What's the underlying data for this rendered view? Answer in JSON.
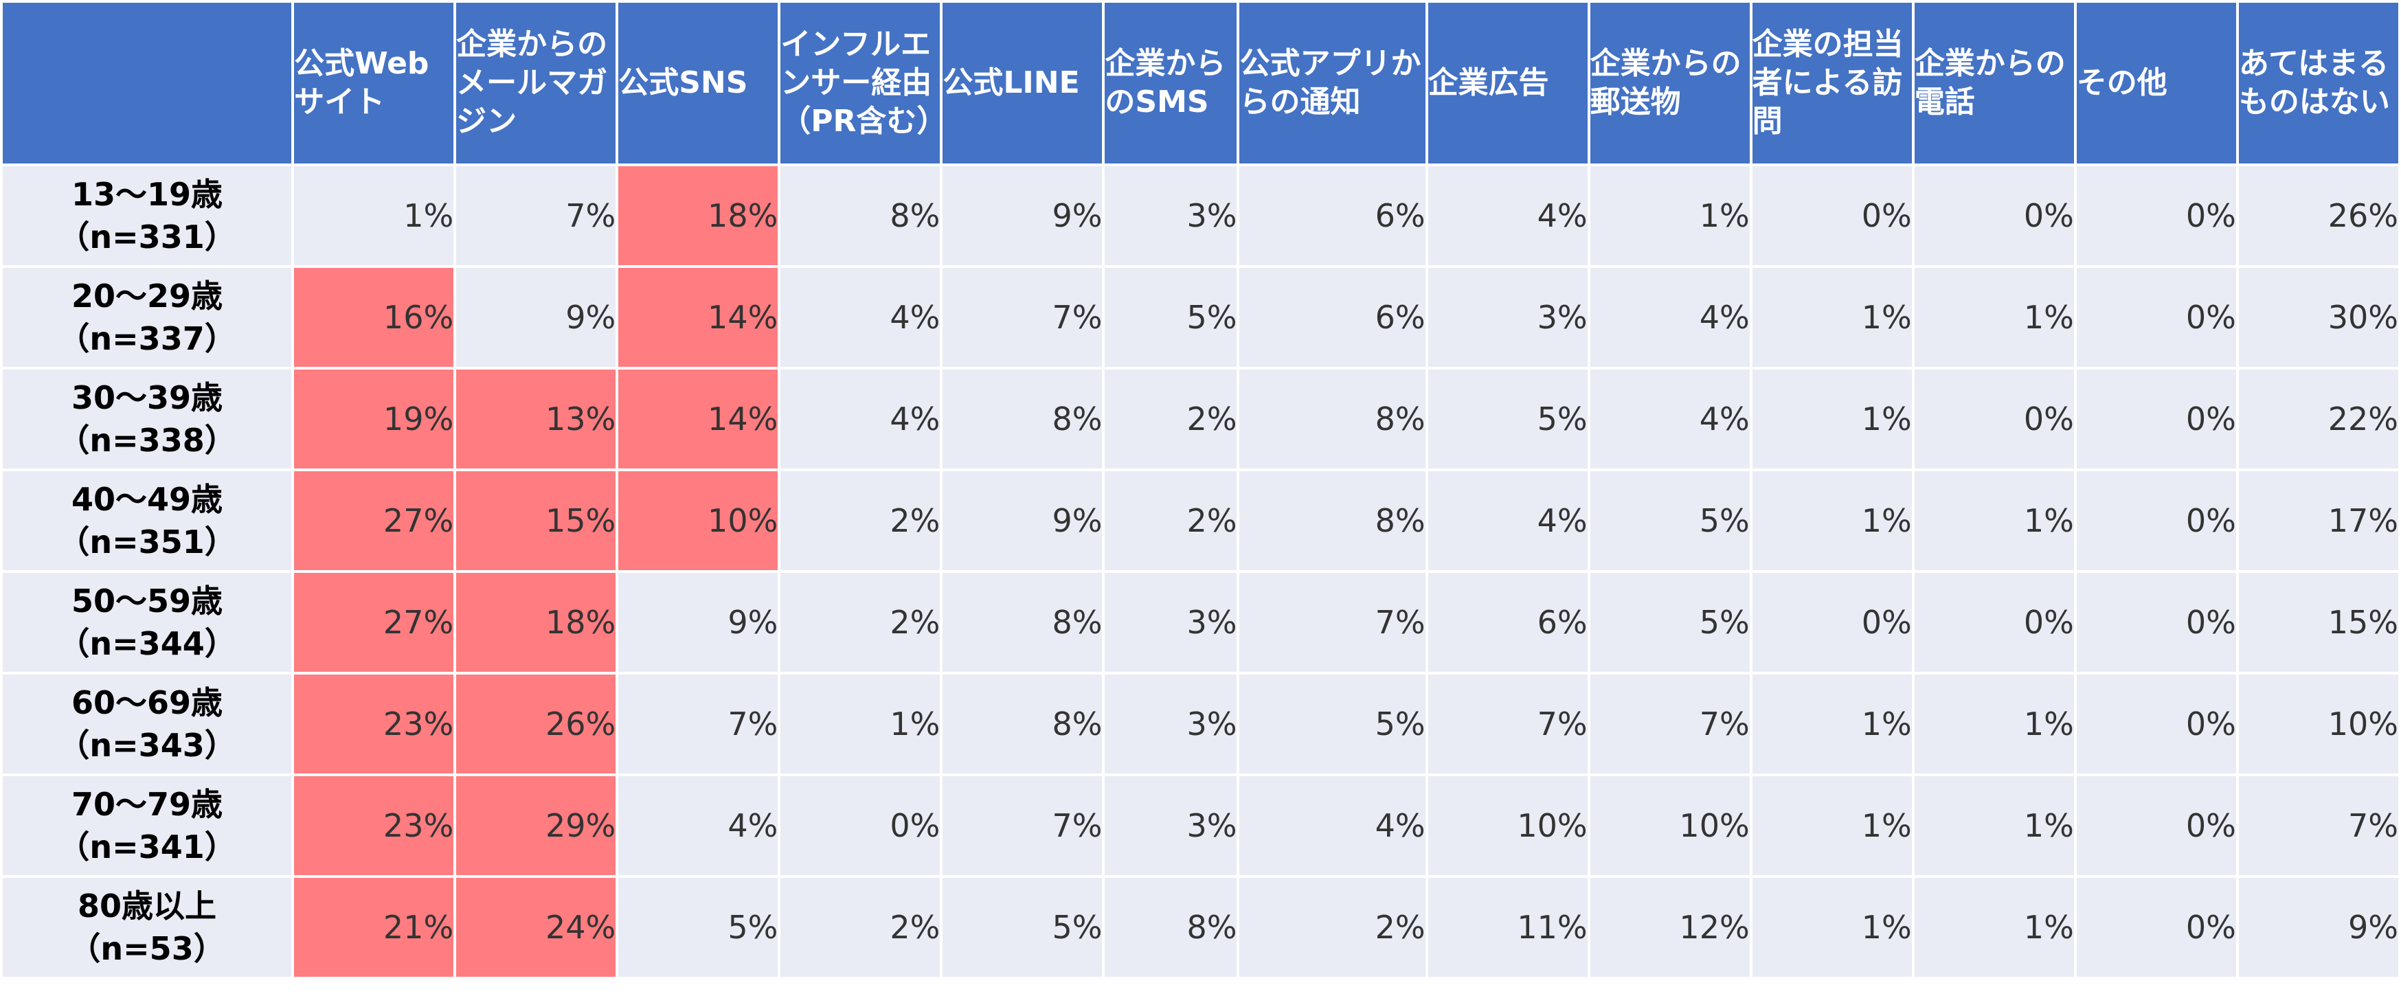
{
  "chart_data": {
    "type": "table",
    "colors": {
      "header_bg": "#4472C4",
      "cell_bg": "#E9EBF5",
      "highlight": "#FF7C80"
    },
    "columns": [
      "公式Webサイト",
      "企業からのメールマガジン",
      "公式SNS",
      "インフルエンサー経由（PR含む）",
      "公式LINE",
      "企業からのSMS",
      "公式アプリからの通知",
      "企業広告",
      "企業からの郵送物",
      "企業の担当者による訪問",
      "企業からの電話",
      "その他",
      "あてはまるものはない"
    ],
    "rows": [
      {
        "label": "13～19歳",
        "n": "（n=331）",
        "values": [
          "1%",
          "7%",
          "18%",
          "8%",
          "9%",
          "3%",
          "6%",
          "4%",
          "1%",
          "0%",
          "0%",
          "0%",
          "26%"
        ],
        "highlight": [
          false,
          false,
          true,
          false,
          false,
          false,
          false,
          false,
          false,
          false,
          false,
          false,
          false
        ]
      },
      {
        "label": "20～29歳",
        "n": "（n=337）",
        "values": [
          "16%",
          "9%",
          "14%",
          "4%",
          "7%",
          "5%",
          "6%",
          "3%",
          "4%",
          "1%",
          "1%",
          "0%",
          "30%"
        ],
        "highlight": [
          true,
          false,
          true,
          false,
          false,
          false,
          false,
          false,
          false,
          false,
          false,
          false,
          false
        ]
      },
      {
        "label": "30～39歳",
        "n": "（n=338）",
        "values": [
          "19%",
          "13%",
          "14%",
          "4%",
          "8%",
          "2%",
          "8%",
          "5%",
          "4%",
          "1%",
          "0%",
          "0%",
          "22%"
        ],
        "highlight": [
          true,
          true,
          true,
          false,
          false,
          false,
          false,
          false,
          false,
          false,
          false,
          false,
          false
        ]
      },
      {
        "label": "40～49歳",
        "n": "（n=351）",
        "values": [
          "27%",
          "15%",
          "10%",
          "2%",
          "9%",
          "2%",
          "8%",
          "4%",
          "5%",
          "1%",
          "1%",
          "0%",
          "17%"
        ],
        "highlight": [
          true,
          true,
          true,
          false,
          false,
          false,
          false,
          false,
          false,
          false,
          false,
          false,
          false
        ]
      },
      {
        "label": "50～59歳",
        "n": "（n=344）",
        "values": [
          "27%",
          "18%",
          "9%",
          "2%",
          "8%",
          "3%",
          "7%",
          "6%",
          "5%",
          "0%",
          "0%",
          "0%",
          "15%"
        ],
        "highlight": [
          true,
          true,
          false,
          false,
          false,
          false,
          false,
          false,
          false,
          false,
          false,
          false,
          false
        ]
      },
      {
        "label": "60～69歳",
        "n": "（n=343）",
        "values": [
          "23%",
          "26%",
          "7%",
          "1%",
          "8%",
          "3%",
          "5%",
          "7%",
          "7%",
          "1%",
          "1%",
          "0%",
          "10%"
        ],
        "highlight": [
          true,
          true,
          false,
          false,
          false,
          false,
          false,
          false,
          false,
          false,
          false,
          false,
          false
        ]
      },
      {
        "label": "70～79歳",
        "n": "（n=341）",
        "values": [
          "23%",
          "29%",
          "4%",
          "0%",
          "7%",
          "3%",
          "4%",
          "10%",
          "10%",
          "1%",
          "1%",
          "0%",
          "7%"
        ],
        "highlight": [
          true,
          true,
          false,
          false,
          false,
          false,
          false,
          false,
          false,
          false,
          false,
          false,
          false
        ]
      },
      {
        "label": "80歳以上",
        "n": "（n=53）",
        "values": [
          "21%",
          "24%",
          "5%",
          "2%",
          "5%",
          "8%",
          "2%",
          "11%",
          "12%",
          "1%",
          "1%",
          "0%",
          "9%"
        ],
        "highlight": [
          true,
          true,
          false,
          false,
          false,
          false,
          false,
          false,
          false,
          false,
          false,
          false,
          false
        ]
      }
    ]
  }
}
